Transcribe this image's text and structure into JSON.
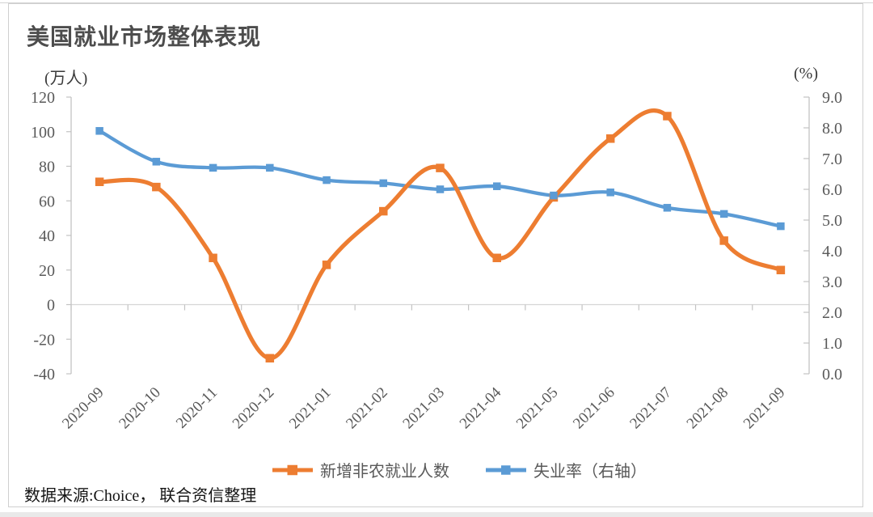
{
  "chart_data": {
    "type": "line",
    "title": "美国就业市场整体表现",
    "left_axis": {
      "unit": "(万人)",
      "min": -40,
      "max": 120,
      "step": 20,
      "tick_labels": [
        "120",
        "100",
        "80",
        "60",
        "40",
        "20",
        "0",
        "-20",
        "-40"
      ]
    },
    "right_axis": {
      "unit": "(%)",
      "min": 0,
      "max": 9,
      "step": 1,
      "tick_labels": [
        "9.0",
        "8.0",
        "7.0",
        "6.0",
        "5.0",
        "4.0",
        "3.0",
        "2.0",
        "1.0",
        "0.0"
      ]
    },
    "categories": [
      "2020-09",
      "2020-10",
      "2020-11",
      "2020-12",
      "2021-01",
      "2021-02",
      "2021-03",
      "2021-04",
      "2021-05",
      "2021-06",
      "2021-07",
      "2021-08",
      "2021-09"
    ],
    "series": [
      {
        "name": "新增非农就业人数",
        "axis": "left",
        "color": "#ED7D31",
        "marker": "square",
        "values": [
          71,
          68,
          27,
          -31,
          23,
          54,
          79,
          27,
          62,
          96,
          109,
          37,
          20
        ]
      },
      {
        "name": "失业率（右轴）",
        "axis": "right",
        "color": "#5B9BD5",
        "marker": "square",
        "values": [
          7.9,
          6.9,
          6.7,
          6.7,
          6.3,
          6.2,
          6.0,
          6.1,
          5.8,
          5.9,
          5.4,
          5.2,
          4.8
        ]
      }
    ],
    "legend_position": "bottom",
    "smooth_lines": true,
    "gridlines": "zero-baseline-only"
  },
  "source_note": "数据来源:Choice， 联合资信整理",
  "colors": {
    "axis_text": "#595959",
    "axis_line": "#c3c3c3",
    "zero_line": "#d6d6d6",
    "title_text": "#4d4d4d",
    "frame_border": "#cfcfcf"
  }
}
